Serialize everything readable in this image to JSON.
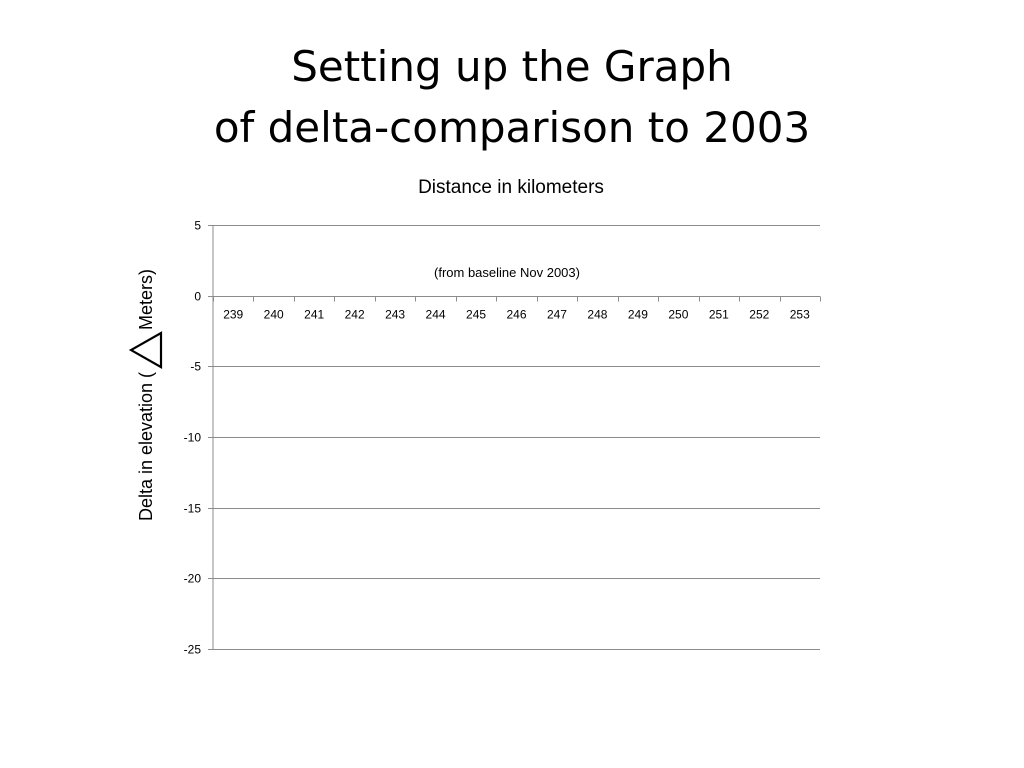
{
  "slide": {
    "title_line1": "Setting up the Graph",
    "title_line2": "of delta-comparison to 2003"
  },
  "chart_data": {
    "type": "line",
    "title": "Distance in kilometers",
    "subtitle": "(from baseline Nov 2003)",
    "xlabel": "Distance in kilometers",
    "ylabel_prefix": "Delta in elevation (",
    "ylabel_symbol": "delta-triangle-icon",
    "ylabel_suffix": " Meters)",
    "categories": [
      "239",
      "240",
      "241",
      "242",
      "243",
      "244",
      "245",
      "246",
      "247",
      "248",
      "249",
      "250",
      "251",
      "252",
      "253"
    ],
    "series": [],
    "ylim": [
      -25,
      5
    ],
    "yticks": [
      5,
      0,
      -5,
      -10,
      -15,
      -20,
      -25
    ],
    "grid": true,
    "legend": "none",
    "colors": {
      "grid": "#8c8c8c",
      "axis": "#8c8c8c",
      "text": "#000000"
    }
  }
}
